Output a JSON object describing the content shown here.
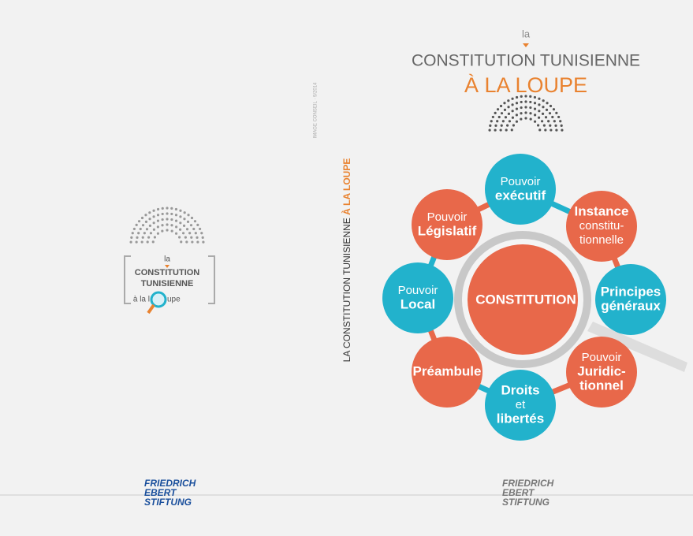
{
  "back_cover": {
    "logo": {
      "article": "la",
      "line1": "CONSTITUTION",
      "line2": "TUNISIENNE",
      "tagline_left": "à la l",
      "tagline_right": "upe"
    },
    "publisher": {
      "line1": "FRIEDRICH",
      "line2": "EBERT",
      "line3": "STIFTUNG"
    }
  },
  "spine": {
    "credit": "IMAGE CONSEIL · 9/2014",
    "title": "LA CONSTITUTION TUNISIENNE",
    "subtitle": "À LA LOUPE"
  },
  "front_cover": {
    "article": "la",
    "title": "CONSTITUTION TUNISIENNE",
    "subtitle": "À LA LOUPE",
    "center": "CONSTITUTION",
    "nodes": [
      {
        "lines": [
          "Pouvoir",
          "exécutif"
        ]
      },
      {
        "lines": [
          "Instance",
          "constitu-",
          "tionnelle"
        ]
      },
      {
        "lines": [
          "Principes",
          "généraux"
        ]
      },
      {
        "lines": [
          "Pouvoir",
          "Juridic-",
          "tionnel"
        ]
      },
      {
        "lines": [
          "Droits",
          "et",
          "libertés"
        ]
      },
      {
        "lines": [
          "Préambule"
        ]
      },
      {
        "lines": [
          "Pouvoir",
          "Local"
        ]
      },
      {
        "lines": [
          "Pouvoir",
          "Législatif"
        ]
      }
    ],
    "publisher": {
      "line1": "FRIEDRICH",
      "line2": "EBERT",
      "line3": "STIFTUNG"
    }
  }
}
